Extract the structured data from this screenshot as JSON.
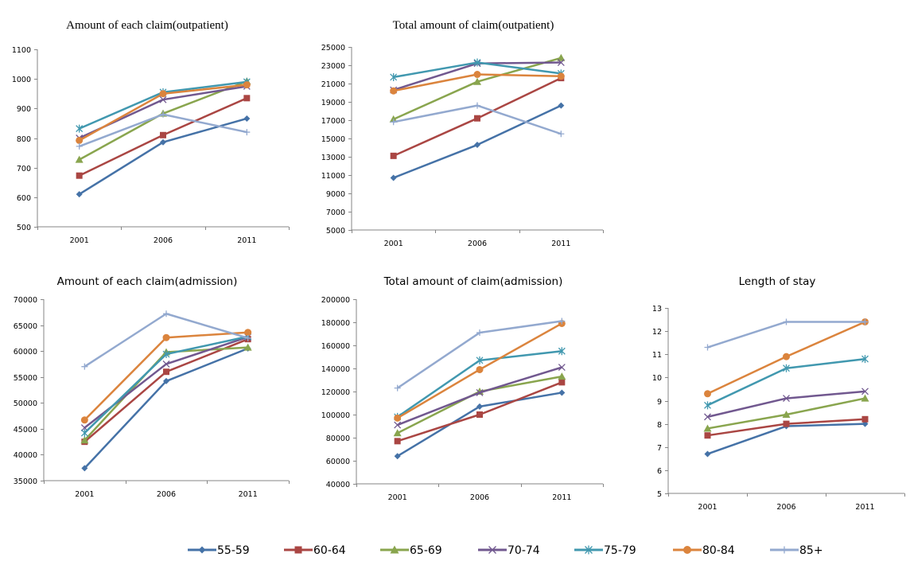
{
  "chart_data": [
    {
      "id": "c1",
      "type": "line",
      "title": "Amount of each claim(outpatient)",
      "xlabel": "",
      "ylabel": "",
      "categories": [
        "2001",
        "2006",
        "2011"
      ],
      "ylim": [
        500,
        1100
      ],
      "yticks": [
        500,
        600,
        700,
        800,
        900,
        1000,
        1100
      ],
      "grid": false,
      "series": [
        {
          "name": "55-59",
          "values": [
            610,
            786,
            866
          ]
        },
        {
          "name": "60-64",
          "values": [
            673,
            810,
            935
          ]
        },
        {
          "name": "65-69",
          "values": [
            727,
            883,
            992
          ]
        },
        {
          "name": "70-74",
          "values": [
            800,
            930,
            975
          ]
        },
        {
          "name": "75-79",
          "values": [
            832,
            955,
            990
          ]
        },
        {
          "name": "80-84",
          "values": [
            792,
            950,
            980
          ]
        },
        {
          "name": "85+",
          "values": [
            772,
            880,
            820
          ]
        }
      ]
    },
    {
      "id": "c2",
      "type": "line",
      "title": "Total amount of claim(outpatient)",
      "xlabel": "",
      "ylabel": "",
      "categories": [
        "2001",
        "2006",
        "2011"
      ],
      "ylim": [
        5000,
        25000
      ],
      "yticks": [
        5000,
        7000,
        9000,
        11000,
        13000,
        15000,
        17000,
        19000,
        21000,
        23000,
        25000
      ],
      "grid": false,
      "series": [
        {
          "name": "55-59",
          "values": [
            10700,
            14300,
            18600
          ]
        },
        {
          "name": "60-64",
          "values": [
            13100,
            17200,
            21600
          ]
        },
        {
          "name": "65-69",
          "values": [
            17100,
            21200,
            23800
          ]
        },
        {
          "name": "70-74",
          "values": [
            20300,
            23200,
            23300
          ]
        },
        {
          "name": "75-79",
          "values": [
            21700,
            23300,
            22100
          ]
        },
        {
          "name": "80-84",
          "values": [
            20200,
            22000,
            21800
          ]
        },
        {
          "name": "85+",
          "values": [
            16800,
            18600,
            15500
          ]
        }
      ]
    },
    {
      "id": "c3",
      "type": "line",
      "title": "Amount of each claim(admission)",
      "xlabel": "",
      "ylabel": "",
      "categories": [
        "2001",
        "2006",
        "2011"
      ],
      "ylim": [
        35000,
        70000
      ],
      "yticks": [
        35000,
        40000,
        45000,
        50000,
        55000,
        60000,
        65000,
        70000
      ],
      "grid": false,
      "series": [
        {
          "name": "55-59",
          "values": [
            37400,
            54200,
            60500
          ]
        },
        {
          "name": "60-64",
          "values": [
            42500,
            56000,
            62300
          ]
        },
        {
          "name": "65-69",
          "values": [
            42800,
            59800,
            60700
          ]
        },
        {
          "name": "70-74",
          "values": [
            45200,
            57500,
            62700
          ]
        },
        {
          "name": "75-79",
          "values": [
            44200,
            59400,
            62800
          ]
        },
        {
          "name": "80-84",
          "values": [
            46700,
            62600,
            63600
          ]
        },
        {
          "name": "85+",
          "values": [
            57000,
            67200,
            62500
          ]
        }
      ]
    },
    {
      "id": "c4",
      "type": "line",
      "title": "Total amount of claim(admission)",
      "xlabel": "",
      "ylabel": "",
      "categories": [
        "2001",
        "2006",
        "2011"
      ],
      "ylim": [
        40000,
        200000
      ],
      "yticks": [
        40000,
        60000,
        80000,
        100000,
        120000,
        140000,
        160000,
        180000,
        200000
      ],
      "grid": false,
      "series": [
        {
          "name": "55-59",
          "values": [
            64000,
            107000,
            119000
          ]
        },
        {
          "name": "60-64",
          "values": [
            77000,
            100000,
            128000
          ]
        },
        {
          "name": "65-69",
          "values": [
            84000,
            120000,
            133000
          ]
        },
        {
          "name": "70-74",
          "values": [
            91000,
            119000,
            141000
          ]
        },
        {
          "name": "75-79",
          "values": [
            98000,
            147000,
            155000
          ]
        },
        {
          "name": "80-84",
          "values": [
            97000,
            139000,
            179000
          ]
        },
        {
          "name": "85+",
          "values": [
            123000,
            171000,
            181000
          ]
        }
      ]
    },
    {
      "id": "c5",
      "type": "line",
      "title": "Length of stay",
      "xlabel": "",
      "ylabel": "",
      "categories": [
        "2001",
        "2006",
        "2011"
      ],
      "ylim": [
        5,
        13
      ],
      "yticks": [
        5,
        6,
        7,
        8,
        9,
        10,
        11,
        12,
        13
      ],
      "grid": false,
      "series": [
        {
          "name": "55-59",
          "values": [
            6.7,
            7.9,
            8.0
          ]
        },
        {
          "name": "60-64",
          "values": [
            7.5,
            8.0,
            8.2
          ]
        },
        {
          "name": "65-69",
          "values": [
            7.8,
            8.4,
            9.1
          ]
        },
        {
          "name": "70-74",
          "values": [
            8.3,
            9.1,
            9.4
          ]
        },
        {
          "name": "75-79",
          "values": [
            8.8,
            10.4,
            10.8
          ]
        },
        {
          "name": "80-84",
          "values": [
            9.3,
            10.9,
            12.4
          ]
        },
        {
          "name": "85+",
          "values": [
            11.3,
            12.4,
            12.4
          ]
        }
      ]
    }
  ],
  "legend": {
    "placement": "bottom",
    "items": [
      {
        "name": "55-59",
        "color": "#4572A7",
        "marker": "diamond"
      },
      {
        "name": "60-64",
        "color": "#AA4643",
        "marker": "square"
      },
      {
        "name": "65-69",
        "color": "#89A54E",
        "marker": "triangle"
      },
      {
        "name": "70-74",
        "color": "#71588F",
        "marker": "x"
      },
      {
        "name": "75-79",
        "color": "#4198AF",
        "marker": "star"
      },
      {
        "name": "80-84",
        "color": "#DB843D",
        "marker": "circle"
      },
      {
        "name": "85+",
        "color": "#93A9CF",
        "marker": "plus"
      }
    ]
  }
}
